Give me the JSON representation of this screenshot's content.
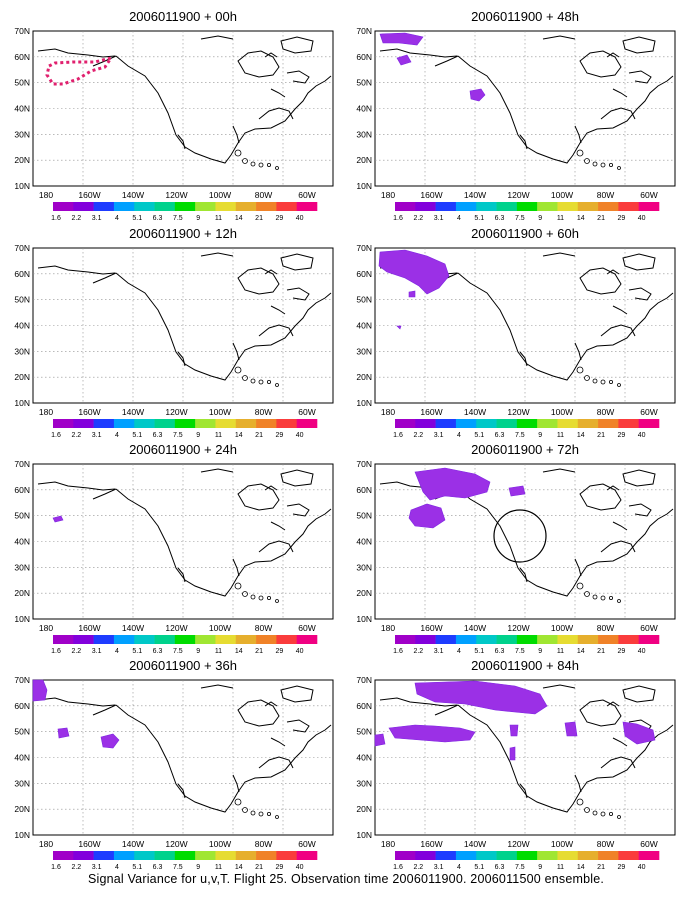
{
  "figure": {
    "caption": "Signal Variance for u,v,T. Flight 25. Observation time 2006011900. 2006011500 ensemble."
  },
  "axes": {
    "lat_labels": [
      "70N",
      "60N",
      "50N",
      "40N",
      "30N",
      "20N",
      "10N"
    ],
    "lon_labels": [
      "180",
      "160W",
      "140W",
      "120W",
      "100W",
      "80W",
      "60W"
    ]
  },
  "colorbar": {
    "labels": [
      "1.6",
      "2.2",
      "3.1",
      "4",
      "5.1",
      "6.3",
      "7.5",
      "9",
      "11",
      "14",
      "21",
      "29",
      "40"
    ],
    "colors": [
      "#a000c8",
      "#8200dc",
      "#1e3cff",
      "#00a0ff",
      "#00c8c8",
      "#00d28c",
      "#00dc00",
      "#a0e632",
      "#e6dc32",
      "#e6af2d",
      "#f08228",
      "#fa3c3c",
      "#f00082"
    ]
  },
  "colors": {
    "signal_fill": "#9b30e6",
    "signal_core": "#7d24e0",
    "verification_marker": "#e0206e",
    "grid": "#909090",
    "coast": "#000000"
  },
  "panels": [
    {
      "title": "2006011900 + 00h",
      "signal_regions": [],
      "flight_track": true,
      "verification_circle": false
    },
    {
      "title": "2006011900 + 48h",
      "signal_regions": [
        "Gulf of Alaska / Bering Sea",
        "North Pacific near 45N 145W"
      ],
      "flight_track": false,
      "verification_circle": false
    },
    {
      "title": "2006011900 + 12h",
      "signal_regions": [],
      "flight_track": false,
      "verification_circle": false
    },
    {
      "title": "2006011900 + 60h",
      "signal_regions": [
        "Alaska / Gulf of Alaska",
        "North Pacific near 52N 173W"
      ],
      "flight_track": false,
      "verification_circle": false
    },
    {
      "title": "2006011900 + 24h",
      "signal_regions": [
        "North Pacific near 49N 172W"
      ],
      "flight_track": false,
      "verification_circle": false
    },
    {
      "title": "2006011900 + 72h",
      "signal_regions": [
        "Alaska / Yukon",
        "North Pacific near 50N 160W",
        "Western Canada near 60N 117W"
      ],
      "flight_track": false,
      "verification_circle": true
    },
    {
      "title": "2006011900 + 36h",
      "signal_regions": [
        "Bering Sea near 66N 178W",
        "North Pacific near 48N 175W",
        "North Pacific near 45N 155W"
      ],
      "flight_track": false,
      "verification_circle": false
    },
    {
      "title": "2006011900 + 84h",
      "signal_regions": [
        "Alaska / Canada band near 63N",
        "North Pacific band near 47N",
        "US West Coast",
        "Great Lakes region",
        "US East Coast"
      ],
      "flight_track": false,
      "verification_circle": false
    }
  ]
}
